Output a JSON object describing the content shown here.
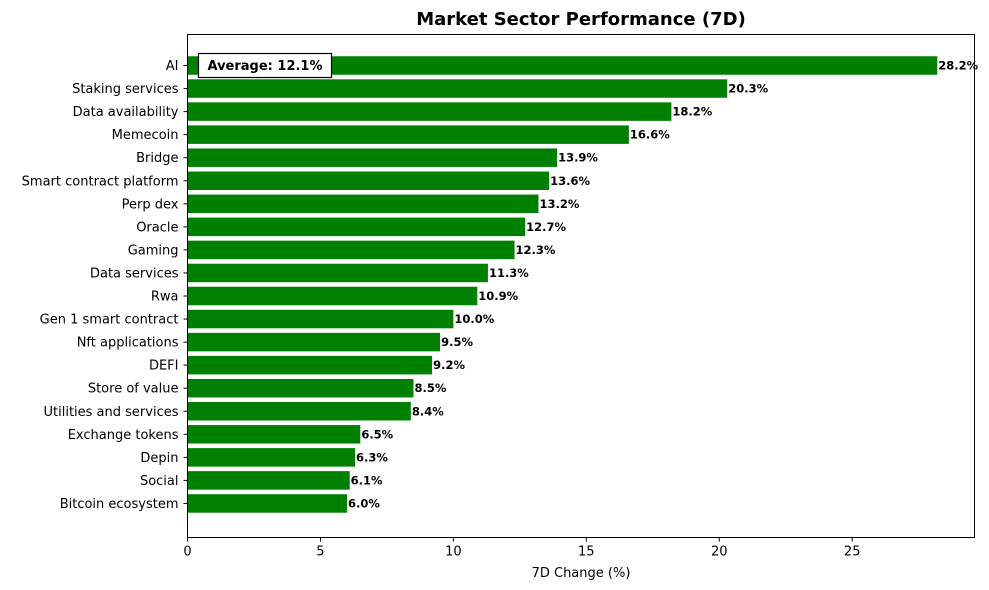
{
  "chart_data": {
    "type": "bar",
    "orientation": "horizontal",
    "title": "Market Sector Performance (7D)",
    "xlabel": "7D Change (%)",
    "ylabel": "",
    "xlim": [
      0,
      29.6
    ],
    "xticks": [
      0,
      5,
      10,
      15,
      20,
      25
    ],
    "categories": [
      "AI",
      "Staking services",
      "Data availability",
      "Memecoin",
      "Bridge",
      "Smart contract platform",
      "Perp dex",
      "Oracle",
      "Gaming",
      "Data services",
      "Rwa",
      "Gen 1 smart contract",
      "Nft applications",
      "DEFI",
      "Store of value",
      "Utilities and services",
      "Exchange tokens",
      "Depin",
      "Social",
      "Bitcoin ecosystem"
    ],
    "values": [
      28.2,
      20.3,
      18.2,
      16.6,
      13.9,
      13.6,
      13.2,
      12.7,
      12.3,
      11.3,
      10.9,
      10.0,
      9.5,
      9.2,
      8.5,
      8.4,
      6.5,
      6.3,
      6.1,
      6.0
    ],
    "value_labels": [
      "28.2%",
      "20.3%",
      "18.2%",
      "16.6%",
      "13.9%",
      "13.6%",
      "13.2%",
      "12.7%",
      "12.3%",
      "11.3%",
      "10.9%",
      "10.0%",
      "9.5%",
      "9.2%",
      "8.5%",
      "8.4%",
      "6.5%",
      "6.3%",
      "6.1%",
      "6.0%"
    ],
    "bar_color": "#008000",
    "annotation": "Average: 12.1%",
    "grid": false
  }
}
